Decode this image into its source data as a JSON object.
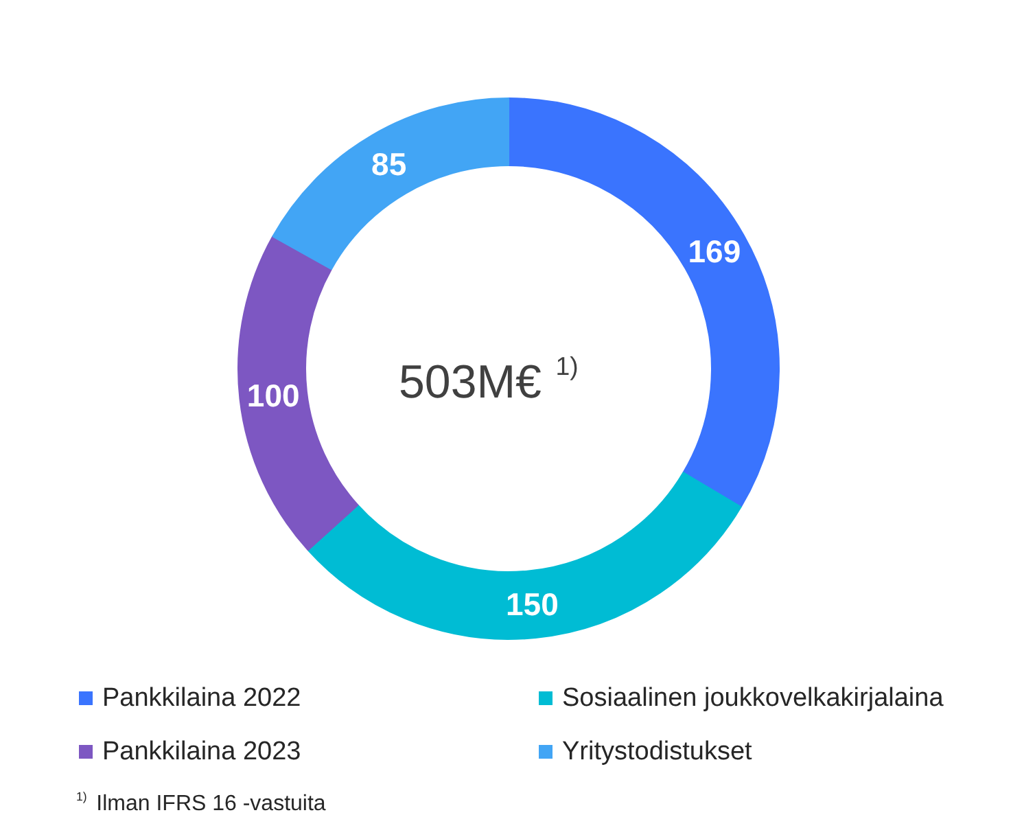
{
  "chart_data": {
    "type": "donut",
    "title": "503M€ $^{1)}$",
    "categories": [
      "Pankkilaina 2022",
      "Sosiaalinen joukkovelkakirjalaina",
      "Pankkilaina 2023",
      "Yritystodistukset"
    ],
    "values": [
      169,
      150,
      100,
      85
    ],
    "colors": [
      "#3a74fe",
      "#00bcd4",
      "#7d57c2",
      "#42a5f5"
    ],
    "data_labels": true,
    "legend": "bottom",
    "annotations": [
      "$^{1)}$ Ilman IFRS 16 -vastuita"
    ]
  }
}
